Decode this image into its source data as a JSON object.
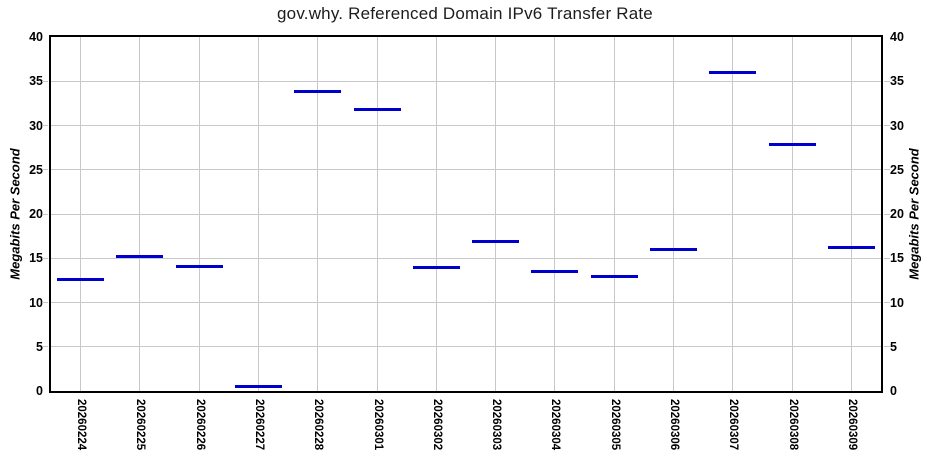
{
  "chart_data": {
    "type": "scatter",
    "marker": "horizontal-dash",
    "title": "gov.why. Referenced Domain IPv6 Transfer Rate",
    "ylabel_left": "Megabits Per Second",
    "ylabel_right": "Megabits Per Second",
    "categories": [
      "20260224",
      "20260225",
      "20260226",
      "20260227",
      "20260228",
      "20260301",
      "20260302",
      "20260303",
      "20260304",
      "20260305",
      "20260306",
      "20260307",
      "20260308",
      "20260309"
    ],
    "values": [
      12.6,
      15.2,
      14.1,
      0.5,
      33.8,
      31.8,
      13.9,
      16.9,
      13.5,
      12.9,
      16.0,
      36.0,
      27.8,
      16.2
    ],
    "ylim": [
      0,
      40
    ],
    "yticks": [
      0,
      5,
      10,
      15,
      20,
      25,
      30,
      35,
      40
    ],
    "grid": true,
    "legend": "none",
    "colors": {
      "line": "#0000cc",
      "grid": "#c8c8c8",
      "axis": "#000000",
      "title_text": "#1c1c1c",
      "tick_text": "#000000"
    }
  }
}
